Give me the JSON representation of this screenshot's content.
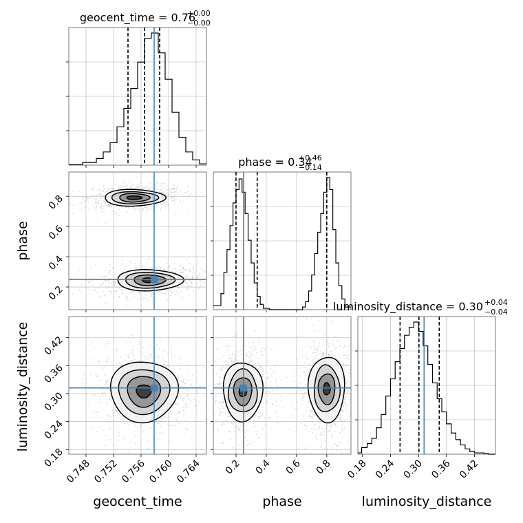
{
  "chart_data": {
    "type": "corner",
    "parameters": [
      "geocent_time",
      "phase",
      "luminosity_distance"
    ],
    "truth": {
      "geocent_time": 0.7579,
      "phase": 0.25,
      "luminosity_distance": 0.312
    },
    "axes": {
      "geocent_time": {
        "range": [
          0.7455,
          0.7655
        ],
        "ticks": [
          "0.748",
          "0.752",
          "0.756",
          "0.760",
          "0.764"
        ],
        "tick_values": [
          0.748,
          0.752,
          0.756,
          0.76,
          0.764
        ]
      },
      "phase": {
        "range": [
          0.05,
          0.96
        ],
        "ticks": [
          "0.2",
          "0.4",
          "0.6",
          "0.8"
        ],
        "tick_values": [
          0.2,
          0.4,
          0.6,
          0.8
        ]
      },
      "luminosity_distance": {
        "range": [
          0.17,
          0.465
        ],
        "ticks": [
          "0.18",
          "0.24",
          "0.30",
          "0.36",
          "0.42"
        ],
        "tick_values": [
          0.18,
          0.24,
          0.3,
          0.36,
          0.42
        ]
      }
    },
    "titles": {
      "geocent_time": {
        "name": "geocent_time",
        "median": "0.76",
        "plus": "+0.00",
        "minus": "−0.00"
      },
      "phase": {
        "name": "phase",
        "median": "0.34",
        "plus": "+0.46",
        "minus": "−0.14"
      },
      "luminosity_distance": {
        "name": "luminosity_distance",
        "median": "0.30",
        "plus": "+0.04",
        "minus": "−0.04"
      }
    },
    "histograms": {
      "geocent_time": {
        "edges": [
          0.7455,
          0.7475,
          0.7495,
          0.7505,
          0.7515,
          0.7525,
          0.7535,
          0.7545,
          0.7555,
          0.7565,
          0.7575,
          0.7585,
          0.7595,
          0.7605,
          0.7615,
          0.7625,
          0.7635,
          0.7645,
          0.7655
        ],
        "counts": [
          0.005,
          0.02,
          0.05,
          0.1,
          0.17,
          0.29,
          0.43,
          0.58,
          0.78,
          0.96,
          1.0,
          0.85,
          0.65,
          0.4,
          0.21,
          0.1,
          0.04,
          0.01
        ],
        "quantiles": [
          0.7541,
          0.7565,
          0.7587
        ]
      },
      "phase": {
        "edges": [
          0.05,
          0.1,
          0.12,
          0.14,
          0.16,
          0.18,
          0.2,
          0.22,
          0.24,
          0.26,
          0.28,
          0.3,
          0.32,
          0.34,
          0.36,
          0.38,
          0.42,
          0.64,
          0.66,
          0.68,
          0.7,
          0.72,
          0.74,
          0.76,
          0.78,
          0.8,
          0.82,
          0.84,
          0.86,
          0.88,
          0.9,
          0.92,
          0.96
        ],
        "counts": [
          0.03,
          0.12,
          0.28,
          0.45,
          0.63,
          0.8,
          0.9,
          0.98,
          0.88,
          0.72,
          0.52,
          0.35,
          0.2,
          0.1,
          0.04,
          0.01,
          0.0,
          0.02,
          0.06,
          0.14,
          0.26,
          0.42,
          0.58,
          0.72,
          0.88,
          0.99,
          0.9,
          0.6,
          0.35,
          0.18,
          0.08,
          0.02
        ],
        "quantiles": [
          0.2,
          0.34,
          0.8
        ]
      },
      "luminosity_distance": {
        "edges": [
          0.17,
          0.178,
          0.19,
          0.2,
          0.21,
          0.22,
          0.23,
          0.24,
          0.25,
          0.26,
          0.27,
          0.28,
          0.29,
          0.3,
          0.31,
          0.32,
          0.33,
          0.34,
          0.35,
          0.36,
          0.37,
          0.38,
          0.39,
          0.4,
          0.41,
          0.42,
          0.43,
          0.44,
          0.45,
          0.465
        ],
        "counts": [
          0.01,
          0.05,
          0.08,
          0.12,
          0.2,
          0.3,
          0.44,
          0.57,
          0.7,
          0.8,
          0.9,
          0.96,
          1.0,
          0.93,
          0.82,
          0.68,
          0.54,
          0.42,
          0.32,
          0.23,
          0.16,
          0.11,
          0.07,
          0.04,
          0.02,
          0.01,
          0.01,
          0.005,
          0.0
        ],
        "quantiles": [
          0.2605,
          0.301,
          0.3445
        ]
      }
    },
    "contours_2d": {
      "phase_vs_geocent_time": {
        "modes": [
          {
            "cx": 0.755,
            "cy": 0.79,
            "levels": [
              {
                "rx": 0.0044,
                "ry": 0.055,
                "rot": -0.35
              },
              {
                "rx": 0.0034,
                "ry": 0.04,
                "rot": -0.35
              },
              {
                "rx": 0.0022,
                "ry": 0.028,
                "rot": -0.35
              },
              {
                "rx": 0.0011,
                "ry": 0.012,
                "rot": -0.35
              }
            ]
          },
          {
            "cx": 0.7572,
            "cy": 0.245,
            "levels": [
              {
                "rx": 0.0048,
                "ry": 0.07,
                "rot": -0.3
              },
              {
                "rx": 0.0036,
                "ry": 0.052,
                "rot": -0.3
              },
              {
                "rx": 0.0023,
                "ry": 0.035,
                "rot": -0.3
              },
              {
                "rx": 0.0011,
                "ry": 0.015,
                "rot": -0.3
              }
            ]
          }
        ]
      },
      "luminosity_distance_vs_geocent_time": {
        "modes": [
          {
            "cx": 0.7564,
            "cy": 0.305,
            "levels": [
              {
                "rx": 0.0049,
                "ry": 0.065,
                "rot": 0
              },
              {
                "rx": 0.0037,
                "ry": 0.048,
                "rot": 0
              },
              {
                "rx": 0.0024,
                "ry": 0.033,
                "rot": 0
              },
              {
                "rx": 0.0011,
                "ry": 0.014,
                "rot": 0
              }
            ]
          }
        ]
      },
      "luminosity_distance_vs_phase": {
        "modes": [
          {
            "cx": 0.245,
            "cy": 0.305,
            "levels": [
              {
                "rx": 0.13,
                "ry": 0.063,
                "rot": 0
              },
              {
                "rx": 0.095,
                "ry": 0.046,
                "rot": 0
              },
              {
                "rx": 0.06,
                "ry": 0.03,
                "rot": 0
              },
              {
                "rx": 0.025,
                "ry": 0.012,
                "rot": 0
              }
            ]
          },
          {
            "cx": 0.8,
            "cy": 0.31,
            "levels": [
              {
                "rx": 0.12,
                "ry": 0.07,
                "rot": 0
              },
              {
                "rx": 0.085,
                "ry": 0.05,
                "rot": 0
              },
              {
                "rx": 0.055,
                "ry": 0.033,
                "rot": 0
              },
              {
                "rx": 0.022,
                "ry": 0.013,
                "rot": 0
              }
            ]
          }
        ]
      }
    },
    "colors": {
      "truth": "#4682b4",
      "hist": "#000000",
      "grid": "#b0b0b0",
      "scatter": "#9e9e9e",
      "fill": "#555555"
    }
  }
}
